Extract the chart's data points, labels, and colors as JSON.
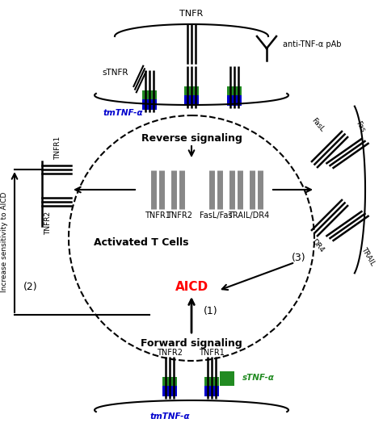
{
  "bg_color": "#ffffff",
  "fig_width": 4.74,
  "fig_height": 5.29,
  "dpi": 100,
  "colors": {
    "black": "#000000",
    "green": "#228B22",
    "blue": "#0000CD",
    "red": "#FF0000",
    "gray": "#777777"
  },
  "labels": {
    "reverse_signaling": "Reverse signaling",
    "forward_signaling": "Forward signaling",
    "activated_t_cells": "Activated T Cells",
    "aicd": "AICD",
    "tnfr_top": "TNFR",
    "anti_tnf": "anti-TNF-α pAb",
    "stnfr": "sTNFR",
    "tmtnf_top": "tmTNF-α",
    "tmtnf_bottom": "tmTNF-α",
    "stnf_bottom": "sTNF-α",
    "tnfr1_mid": "TNFR1",
    "tnfr2_mid": "TNFR2",
    "fasl_fas": "FasL/Fas",
    "trail_dr4": "TRAIL/DR4",
    "tnfr1_left": "TNFR1",
    "tnfr2_left": "TNFR2",
    "fasl_right": "FasL",
    "fas_right": "Fas",
    "dr4_right": "DR4",
    "trail_right": "TRAIL",
    "tnfr1_bottom": "TNFR1",
    "tnfr2_bottom": "TNFR2",
    "increase_sensitivity": "Increase sensitivity to AICD",
    "num1": "(1)",
    "num2": "(2)",
    "num3": "(3)"
  }
}
